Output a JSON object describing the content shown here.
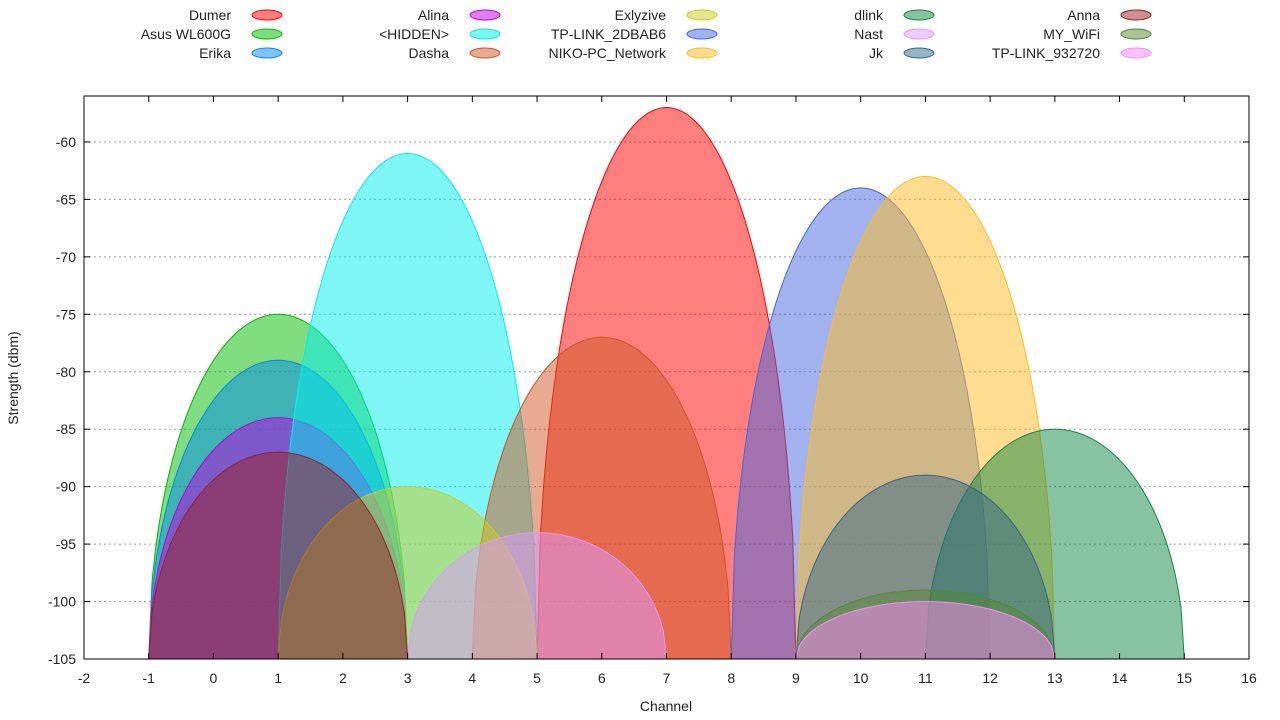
{
  "chart_data": {
    "type": "area",
    "title": "",
    "xlabel": "Channel",
    "ylabel": "Strength (dbm)",
    "xlim": [
      -2,
      16
    ],
    "ylim": [
      -105,
      -56
    ],
    "xticks": [
      -2,
      -1,
      0,
      1,
      2,
      3,
      4,
      5,
      6,
      7,
      8,
      9,
      10,
      11,
      12,
      13,
      14,
      15,
      16
    ],
    "yticks": [
      -105,
      -100,
      -95,
      -90,
      -85,
      -80,
      -75,
      -70,
      -65,
      -60
    ],
    "grid": "horizontal-dashed",
    "legend_position": "top",
    "baseline": -105,
    "series": [
      {
        "name": "Dumer",
        "channel": 7,
        "strength": -57,
        "color": "#ff0000"
      },
      {
        "name": "Asus WL600G",
        "channel": 1,
        "strength": -75,
        "color": "#00bb00"
      },
      {
        "name": "Erika",
        "channel": 1,
        "strength": -79,
        "color": "#0088ee"
      },
      {
        "name": "Alina",
        "channel": 1,
        "strength": -84,
        "color": "#bb00dd"
      },
      {
        "name": "<HIDDEN>",
        "channel": 3,
        "strength": -61,
        "color": "#00eeee"
      },
      {
        "name": "Dasha",
        "channel": 6,
        "strength": -77,
        "color": "#cc5522"
      },
      {
        "name": "Exlyzive",
        "channel": 3,
        "strength": -90,
        "color": "#cccc22"
      },
      {
        "name": "TP-LINK_2DBAB6",
        "channel": 10,
        "strength": -64,
        "color": "#4466dd"
      },
      {
        "name": "NIKO-PC_Network",
        "channel": 11,
        "strength": -63,
        "color": "#ffbb22"
      },
      {
        "name": "dlink",
        "channel": 13,
        "strength": -85,
        "color": "#118844"
      },
      {
        "name": "Nast",
        "channel": 5,
        "strength": -94,
        "color": "#dd99ff"
      },
      {
        "name": "Jk",
        "channel": 11,
        "strength": -89,
        "color": "#336688"
      },
      {
        "name": "Anna",
        "channel": 1,
        "strength": -87,
        "color": "#992222"
      },
      {
        "name": "MY_WiFi",
        "channel": 11,
        "strength": -99,
        "color": "#558833"
      },
      {
        "name": "TP-LINK_932720",
        "channel": 11,
        "strength": -100,
        "color": "#ff88ff"
      }
    ]
  }
}
